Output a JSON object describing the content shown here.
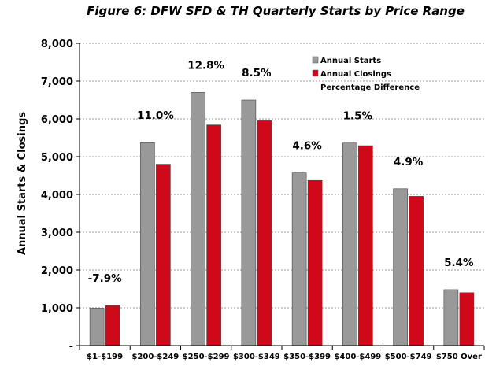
{
  "chart_data": {
    "type": "bar",
    "title": "Figure 6: DFW SFD & TH Quarterly Starts by Price Range",
    "ylabel": "Annual Starts & Closings",
    "xlabel": "",
    "ylim": [
      0,
      8000
    ],
    "yticks": [
      0,
      1000,
      2000,
      3000,
      4000,
      5000,
      6000,
      7000,
      8000
    ],
    "ytick_labels": [
      "-",
      "1,000",
      "2,000",
      "3,000",
      "4,000",
      "5,000",
      "6,000",
      "7,000",
      "8,000"
    ],
    "grid": true,
    "legend_position": "top-right",
    "categories": [
      "$1-$199",
      "$200-$249",
      "$250-$299",
      "$300-$349",
      "$350-$399",
      "$400-$499",
      "$500-$749",
      "$750 Over"
    ],
    "series": [
      {
        "name": "Annual Starts",
        "color": "#999999",
        "values": [
          990,
          5370,
          6700,
          6500,
          4570,
          5360,
          4150,
          1480
        ]
      },
      {
        "name": "Annual Closings",
        "color": "#d0091a",
        "values": [
          1060,
          4800,
          5840,
          5950,
          4370,
          5290,
          3950,
          1400
        ]
      }
    ],
    "percentage_legend": "Percentage Difference",
    "percent_labels": [
      "-7.9%",
      "11.0%",
      "12.8%",
      "8.5%",
      "4.6%",
      "1.5%",
      "4.9%",
      "5.4%"
    ]
  }
}
